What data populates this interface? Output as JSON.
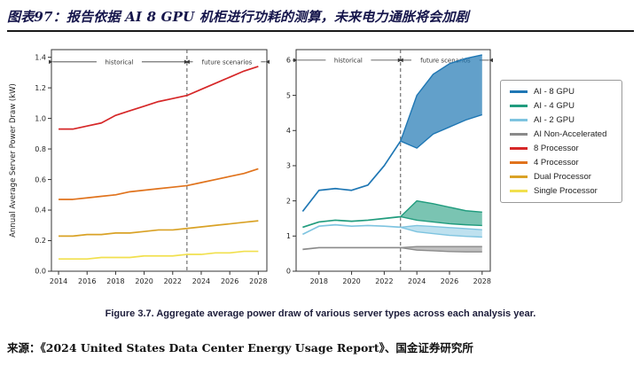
{
  "header": {
    "title": "图表97：报告依据 AI 8 GPU 机柜进行功耗的测算，未来电力通胀将会加剧"
  },
  "caption": "Figure 3.7.  Aggregate average power draw of various server types across each analysis year.",
  "source": "来源：《2024 United States Data Center Energy Usage Report》、国金证券研究所",
  "colors": {
    "ai_8_gpu": "#1f77b4",
    "ai_4_gpu": "#219c7e",
    "ai_2_gpu": "#7ec4e0",
    "ai_non_accelerated": "#8a8a8a",
    "processor_8": "#d62728",
    "processor_4": "#e0731d",
    "dual_processor": "#d9a226",
    "single_processor": "#f1e04e"
  },
  "legend": {
    "items": [
      {
        "label": "AI - 8 GPU",
        "color": "#1f77b4"
      },
      {
        "label": "AI - 4 GPU",
        "color": "#219c7e"
      },
      {
        "label": "AI - 2 GPU",
        "color": "#7ec4e0"
      },
      {
        "label": "AI Non-Accelerated",
        "color": "#8a8a8a"
      },
      {
        "label": "8 Processor",
        "color": "#d62728"
      },
      {
        "label": "4 Processor",
        "color": "#e0731d"
      },
      {
        "label": "Dual Processor",
        "color": "#d9a226"
      },
      {
        "label": "Single Processor",
        "color": "#f1e04e"
      }
    ]
  },
  "chart_data": [
    {
      "type": "line",
      "title": "",
      "xlabel": "",
      "ylabel": "Annual Average Server Power Draw (kW)",
      "xlim": [
        2013.5,
        2028.6
      ],
      "ylim": [
        0,
        1.45
      ],
      "xticks": [
        2014,
        2016,
        2018,
        2020,
        2022,
        2024,
        2026,
        2028
      ],
      "yticks": [
        0.0,
        0.2,
        0.4,
        0.6,
        0.8,
        1.0,
        1.2,
        1.4
      ],
      "ydec": 1,
      "divider_x": 2023,
      "grid": false,
      "regions": [
        {
          "label": "historical",
          "from": 2013.5,
          "to": 2023,
          "y": 1.37
        },
        {
          "label": "future scenarios",
          "from": 2023,
          "to": 2028.6,
          "y": 1.37
        }
      ],
      "x": [
        2014,
        2015,
        2016,
        2017,
        2018,
        2019,
        2020,
        2021,
        2022,
        2023,
        2024,
        2025,
        2026,
        2027,
        2028
      ],
      "series": [
        {
          "name": "8 Processor",
          "color": "#d62728",
          "values": [
            0.93,
            0.93,
            0.95,
            0.97,
            1.02,
            1.05,
            1.08,
            1.11,
            1.13,
            1.15,
            1.19,
            1.23,
            1.27,
            1.31,
            1.34
          ]
        },
        {
          "name": "4 Processor",
          "color": "#e0731d",
          "values": [
            0.47,
            0.47,
            0.48,
            0.49,
            0.5,
            0.52,
            0.53,
            0.54,
            0.55,
            0.56,
            0.58,
            0.6,
            0.62,
            0.64,
            0.67
          ]
        },
        {
          "name": "Dual Processor",
          "color": "#d9a226",
          "values": [
            0.23,
            0.23,
            0.24,
            0.24,
            0.25,
            0.25,
            0.26,
            0.27,
            0.27,
            0.28,
            0.29,
            0.3,
            0.31,
            0.32,
            0.33
          ]
        },
        {
          "name": "Single Processor",
          "color": "#f1e04e",
          "values": [
            0.08,
            0.08,
            0.08,
            0.09,
            0.09,
            0.09,
            0.1,
            0.1,
            0.1,
            0.11,
            0.11,
            0.12,
            0.12,
            0.13,
            0.13
          ]
        }
      ]
    },
    {
      "type": "line",
      "title": "",
      "xlabel": "",
      "ylabel": "",
      "xlim": [
        2016.6,
        2028.5
      ],
      "ylim": [
        0,
        6.3
      ],
      "xticks": [
        2018,
        2020,
        2022,
        2024,
        2026,
        2028
      ],
      "yticks": [
        0,
        1,
        2,
        3,
        4,
        5,
        6
      ],
      "ydec": 0,
      "divider_x": 2023,
      "grid": false,
      "regions": [
        {
          "label": "historical",
          "from": 2016.6,
          "to": 2023,
          "y": 6.0
        },
        {
          "label": "future scenarios",
          "from": 2023,
          "to": 2028.5,
          "y": 6.0
        }
      ],
      "series": [
        {
          "name": "AI - 8 GPU",
          "color": "#1f77b4",
          "x": [
            2017,
            2018,
            2019,
            2020,
            2021,
            2022,
            2023
          ],
          "values": [
            1.7,
            2.3,
            2.35,
            2.3,
            2.45,
            3.0,
            3.7
          ],
          "band": {
            "opacity": 0.7,
            "x": [
              2023,
              2024,
              2025,
              2026,
              2027,
              2028
            ],
            "high": [
              3.7,
              5.0,
              5.6,
              5.9,
              6.05,
              6.15
            ],
            "low": [
              3.7,
              3.5,
              3.9,
              4.1,
              4.3,
              4.45
            ]
          }
        },
        {
          "name": "AI - 4 GPU",
          "color": "#219c7e",
          "x": [
            2017,
            2018,
            2019,
            2020,
            2021,
            2022,
            2023
          ],
          "values": [
            1.25,
            1.4,
            1.45,
            1.42,
            1.45,
            1.5,
            1.55
          ],
          "band": {
            "opacity": 0.6,
            "x": [
              2023,
              2024,
              2025,
              2026,
              2027,
              2028
            ],
            "high": [
              1.55,
              2.0,
              1.92,
              1.82,
              1.72,
              1.68
            ],
            "low": [
              1.55,
              1.45,
              1.4,
              1.35,
              1.32,
              1.3
            ]
          }
        },
        {
          "name": "AI - 2 GPU",
          "color": "#7ec4e0",
          "x": [
            2017,
            2018,
            2019,
            2020,
            2021,
            2022,
            2023
          ],
          "values": [
            1.05,
            1.28,
            1.32,
            1.28,
            1.3,
            1.28,
            1.25
          ],
          "band": {
            "opacity": 0.5,
            "x": [
              2023,
              2024,
              2025,
              2026,
              2027,
              2028
            ],
            "high": [
              1.25,
              1.3,
              1.27,
              1.24,
              1.21,
              1.18
            ],
            "low": [
              1.25,
              1.12,
              1.07,
              1.02,
              0.99,
              0.97
            ]
          }
        },
        {
          "name": "AI Non-Accelerated",
          "color": "#8a8a8a",
          "x": [
            2017,
            2018,
            2019,
            2020,
            2021,
            2022,
            2023
          ],
          "values": [
            0.62,
            0.67,
            0.67,
            0.67,
            0.67,
            0.67,
            0.67
          ],
          "band": {
            "opacity": 0.55,
            "x": [
              2023,
              2024,
              2025,
              2026,
              2027,
              2028
            ],
            "high": [
              0.67,
              0.7,
              0.7,
              0.7,
              0.7,
              0.7
            ],
            "low": [
              0.67,
              0.6,
              0.58,
              0.56,
              0.55,
              0.55
            ]
          }
        }
      ]
    }
  ]
}
